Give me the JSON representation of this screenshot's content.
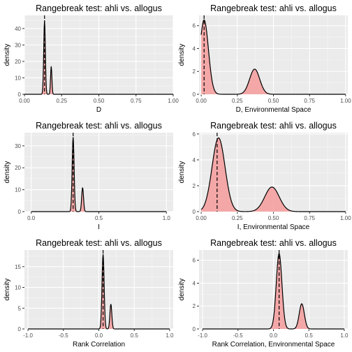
{
  "figure": {
    "colors": {
      "panel_bg": "#ebebeb",
      "grid_major": "#ffffff",
      "fill": "#f4a0a0",
      "outline": "#000000",
      "axis_text": "#4d4d4d",
      "title_text": "#000000"
    }
  },
  "chart_data": [
    {
      "type": "area",
      "title": "Rangebreak test: ahli vs. allogus",
      "xlabel": "D",
      "ylabel": "density",
      "xlim": [
        0,
        1
      ],
      "ylim": [
        0,
        48
      ],
      "xticks": [
        0.0,
        0.25,
        0.5,
        0.75,
        1.0
      ],
      "xtick_labels": [
        "0.00",
        "0.25",
        "0.50",
        "0.75",
        "1.00"
      ],
      "yticks": [
        0,
        10,
        20,
        30,
        40
      ],
      "ytick_labels": [
        "0",
        "10",
        "20",
        "30",
        "40"
      ],
      "grid": true,
      "observed_line_x": 0.135,
      "peaks": [
        {
          "mean": 0.135,
          "sd": 0.0055,
          "height": 45
        },
        {
          "mean": 0.18,
          "sd": 0.0045,
          "height": 17
        }
      ],
      "xrange": [
        0.0,
        1.0
      ]
    },
    {
      "type": "area",
      "title": "Rangebreak test: ahli vs. allogus",
      "xlabel": "D, Environmental Space",
      "ylabel": "density",
      "xlim": [
        -0.015,
        1.015
      ],
      "ylim": [
        0,
        6.9
      ],
      "xticks": [
        0.0,
        0.25,
        0.5,
        0.75,
        1.0
      ],
      "xtick_labels": [
        "0.00",
        "0.25",
        "0.50",
        "0.75",
        "1.00"
      ],
      "yticks": [
        0,
        2,
        4,
        6
      ],
      "ytick_labels": [
        "0",
        "2",
        "4",
        "6"
      ],
      "grid": true,
      "observed_line_x": 0.02,
      "peaks": [
        {
          "mean": 0.02,
          "sd": 0.03,
          "height": 6.5
        },
        {
          "mean": 0.37,
          "sd": 0.035,
          "height": 2.2
        }
      ],
      "xrange": [
        0.0,
        1.0
      ]
    },
    {
      "type": "area",
      "title": "Rangebreak test: ahli vs. allogus",
      "xlabel": "I",
      "ylabel": "density",
      "xlim": [
        -0.05,
        1.05
      ],
      "ylim": [
        0,
        36
      ],
      "xticks": [
        0.0,
        0.5,
        1.0
      ],
      "xtick_labels": [
        "0.0",
        "0.5",
        "1.0"
      ],
      "yticks": [
        0,
        10,
        20,
        30
      ],
      "ytick_labels": [
        "0",
        "10",
        "20",
        "30"
      ],
      "grid": true,
      "observed_line_x": 0.31,
      "peaks": [
        {
          "mean": 0.31,
          "sd": 0.0072,
          "height": 34
        },
        {
          "mean": 0.38,
          "sd": 0.0068,
          "height": 11
        }
      ],
      "xrange": [
        0.0,
        1.0
      ]
    },
    {
      "type": "area",
      "title": "Rangebreak test: ahli vs. allogus",
      "xlabel": "I, Environmental Space",
      "ylabel": "density",
      "xlim": [
        -0.015,
        1.015
      ],
      "ylim": [
        0,
        6.1
      ],
      "xticks": [
        0.0,
        0.25,
        0.5,
        0.75,
        1.0
      ],
      "xtick_labels": [
        "0.00",
        "0.25",
        "0.50",
        "0.75",
        "1.00"
      ],
      "yticks": [
        0,
        2,
        4,
        6
      ],
      "ytick_labels": [
        "0",
        "2",
        "4",
        "6"
      ],
      "grid": true,
      "observed_line_x": 0.11,
      "peaks": [
        {
          "mean": 0.12,
          "sd": 0.045,
          "height": 5.7
        },
        {
          "mean": 0.49,
          "sd": 0.05,
          "height": 1.9
        }
      ],
      "xrange": [
        0.0,
        1.0
      ]
    },
    {
      "type": "area",
      "title": "Rangebreak test: ahli vs. allogus",
      "xlabel": "Rank Correlation",
      "ylabel": "density",
      "xlim": [
        -1.05,
        1.05
      ],
      "ylim": [
        0,
        19
      ],
      "xticks": [
        -1.0,
        -0.5,
        0.0,
        0.5,
        1.0
      ],
      "xtick_labels": [
        "-1.0",
        "-0.5",
        "0.0",
        "0.5",
        "1.0"
      ],
      "yticks": [
        0,
        5,
        10,
        15
      ],
      "ytick_labels": [
        "0",
        "5",
        "10",
        "15"
      ],
      "grid": true,
      "observed_line_x": 0.06,
      "peaks": [
        {
          "mean": 0.06,
          "sd": 0.015,
          "height": 18
        },
        {
          "mean": 0.17,
          "sd": 0.0135,
          "height": 6
        }
      ],
      "xrange": [
        -1.0,
        1.0
      ]
    },
    {
      "type": "area",
      "title": "Rangebreak test: ahli vs. allogus",
      "xlabel": "Rank Correlation, Environmental Space",
      "ylabel": "density",
      "xlim": [
        -1.05,
        1.05
      ],
      "ylim": [
        0,
        6.9
      ],
      "xticks": [
        -1.0,
        -0.5,
        0.0,
        0.5,
        1.0
      ],
      "xtick_labels": [
        "-1.0",
        "-0.5",
        "0.0",
        "0.5",
        "1.0"
      ],
      "yticks": [
        0,
        2,
        4,
        6
      ],
      "ytick_labels": [
        "0",
        "2",
        "4",
        "6"
      ],
      "grid": true,
      "observed_line_x": 0.08,
      "peaks": [
        {
          "mean": 0.08,
          "sd": 0.04,
          "height": 6.6
        },
        {
          "mean": 0.4,
          "sd": 0.036,
          "height": 2.2
        }
      ],
      "xrange": [
        -1.0,
        1.0
      ]
    }
  ]
}
